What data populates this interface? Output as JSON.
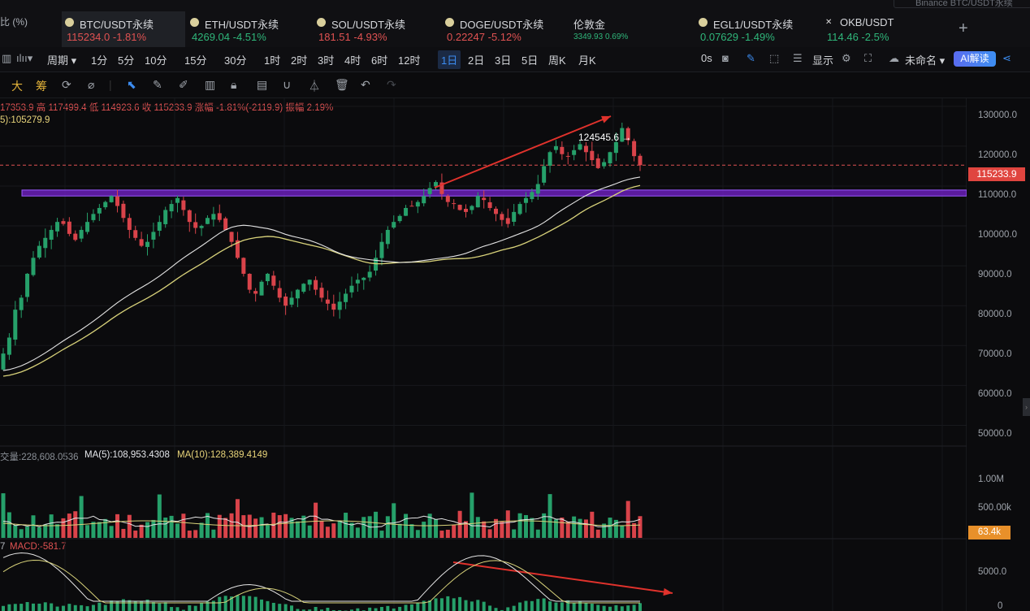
{
  "top": {
    "left_text": "比 (%)",
    "search_placeholder": "Binance BTC/USDT永续",
    "add_label": "+",
    "tickers": [
      {
        "name": "BTC/USDT永续",
        "price": "115234.0",
        "change": "-1.81%",
        "dir": "down",
        "active": true
      },
      {
        "name": "ETH/USDT永续",
        "price": "4269.04",
        "change": "-4.51%",
        "dir": "up"
      },
      {
        "name": "SOL/USDT永续",
        "price": "181.51",
        "change": "-4.93%",
        "dir": "down"
      },
      {
        "name": "DOGE/USDT永续",
        "price": "0.22247",
        "change": "-5.12%",
        "dir": "down"
      },
      {
        "name": "伦敦金",
        "price": "3349.93",
        "change": "0.69%",
        "dir": "up"
      },
      {
        "name": "EGL1/USDT永续",
        "price": "0.07629",
        "change": "-1.49%",
        "dir": "up"
      },
      {
        "name": "OKB/USDT",
        "price": "114.46",
        "change": "-2.5%",
        "dir": "up"
      }
    ]
  },
  "toolbar": {
    "period_label": "周期",
    "timeframes": [
      "1分",
      "5分",
      "10分",
      "15分",
      "30分",
      "1时",
      "2时",
      "3时",
      "4时",
      "6时",
      "12时",
      "1日",
      "2日",
      "3日",
      "5日",
      "周K",
      "月K"
    ],
    "selected": "1日",
    "zero_s": "0s",
    "display_label": "显示",
    "unnamed_label": "未命名",
    "ai_label": "AI解读"
  },
  "drawbar": {
    "big": "大",
    "chips": "筹"
  },
  "info": {
    "ohlc": "17353.9 高 117499.4 低 114923.6 收 115233.9 涨幅 -1.81%(-2119.9) 振幅 2.19%",
    "ma_line": "5):105279.9",
    "vol_line": "交量:228,608.0536",
    "vol_ma5": "MA(5):108,953.4308",
    "vol_ma10": "MA(10):128,389.4149",
    "macd_prefix": "7",
    "macd_line": "MACD:-581.7"
  },
  "annotation": {
    "high_label": "124545.6"
  },
  "price_axis": [
    "130000.0",
    "120000.0",
    "110000.0",
    "100000.0",
    "90000.0",
    "80000.0",
    "70000.0",
    "60000.0",
    "50000.0"
  ],
  "price_tag": "115233.9",
  "vol_axis": [
    "1.00M",
    "500.00k"
  ],
  "vol_tag": "63.4k",
  "macd_axis": [
    "5000.0",
    "0"
  ],
  "chart_data": {
    "type": "candlestick",
    "y_range": [
      45000,
      132000
    ],
    "current_price": 115233.9,
    "resistance_band": [
      107500,
      109000
    ],
    "annotated_high": 124545.6,
    "closes": [
      68000,
      72000,
      79000,
      82000,
      88000,
      92000,
      95000,
      97000,
      99000,
      101000,
      100500,
      98000,
      96500,
      99000,
      101000,
      103000,
      104500,
      106000,
      107500,
      105000,
      102000,
      99000,
      97000,
      95000,
      96000,
      98500,
      101000,
      104000,
      105500,
      107000,
      104000,
      101000,
      99500,
      100000,
      102000,
      103000,
      101500,
      99000,
      96000,
      92000,
      88000,
      84000,
      83000,
      86000,
      88000,
      85000,
      82000,
      80000,
      82000,
      84000,
      85500,
      86500,
      84000,
      82000,
      80500,
      79000,
      81000,
      83000,
      85000,
      86500,
      87000,
      88500,
      92000,
      96000,
      99000,
      101000,
      102500,
      104500,
      105000,
      106000,
      107500,
      109500,
      111000,
      108000,
      106000,
      105500,
      104000,
      103500,
      105000,
      107500,
      106500,
      104500,
      103000,
      101500,
      100500,
      103500,
      105500,
      107000,
      108500,
      110500,
      115000,
      118500,
      120000,
      118000,
      117500,
      119000,
      120500,
      118500,
      116500,
      114500,
      116000,
      118500,
      121000,
      124545,
      121500,
      117500,
      115234
    ]
  }
}
